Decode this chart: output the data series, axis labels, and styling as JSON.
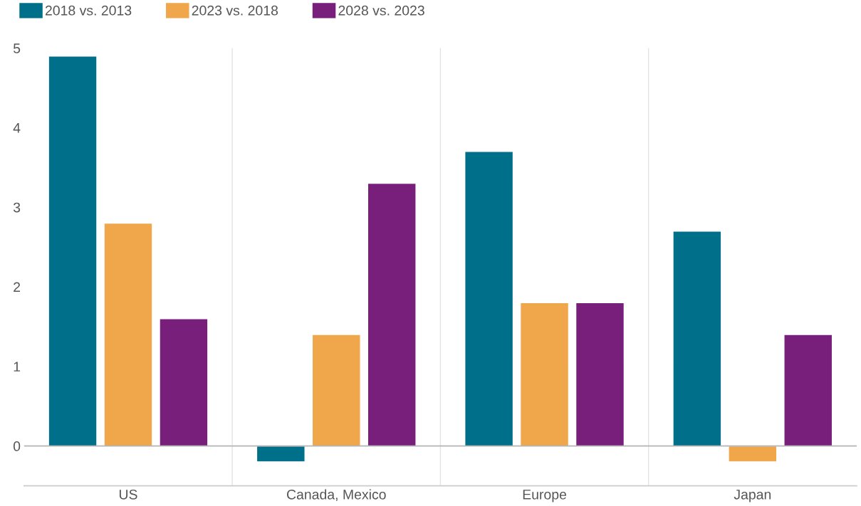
{
  "chart_data": {
    "type": "bar",
    "categories": [
      "US",
      "Canada, Mexico",
      "Europe",
      "Japan"
    ],
    "series": [
      {
        "name": "2018 vs. 2013",
        "color": "#006f89",
        "values": [
          4.9,
          -0.2,
          3.7,
          2.7
        ]
      },
      {
        "name": "2023 vs. 2018",
        "color": "#f0a64a",
        "values": [
          2.8,
          1.4,
          1.8,
          -0.2
        ]
      },
      {
        "name": "2028 vs. 2023",
        "color": "#781f7c",
        "values": [
          1.6,
          3.3,
          1.8,
          1.4
        ]
      }
    ],
    "ylim": [
      -0.5,
      5
    ],
    "yticks": [
      0,
      1,
      2,
      3,
      4,
      5
    ],
    "ref_lines": [
      {
        "axis": "y",
        "value": 0,
        "color": "#b4b4b4"
      }
    ],
    "grid": "x",
    "legend": "top left"
  }
}
